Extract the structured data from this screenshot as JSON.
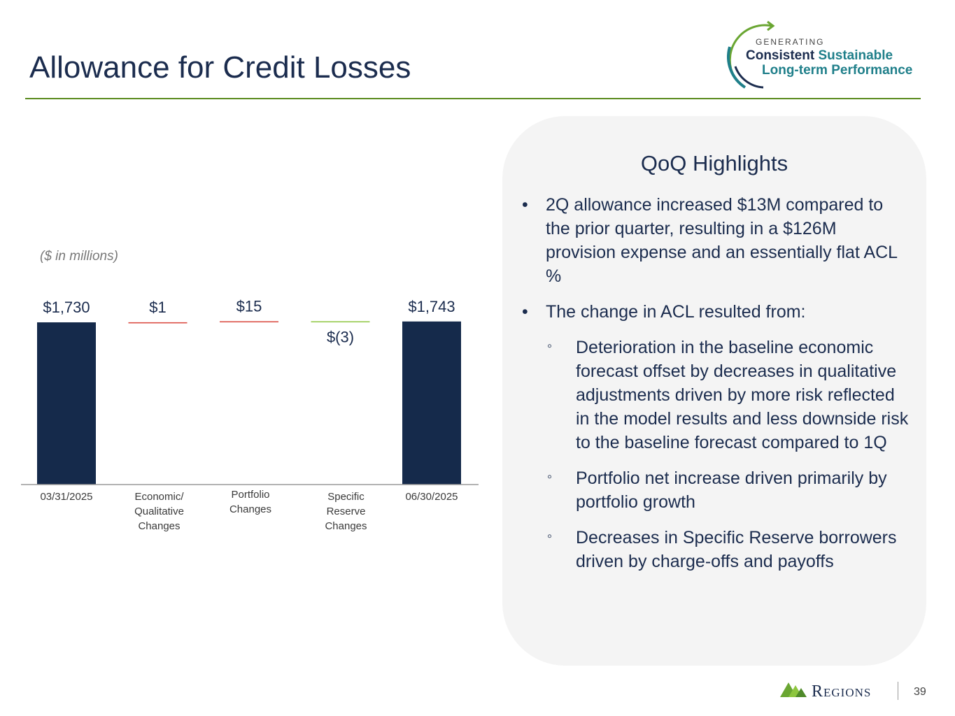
{
  "header": {
    "title": "Allowance for Credit Losses"
  },
  "logo": {
    "generating": "GENERATING",
    "line1_a": "Consistent",
    "line1_b": "Sustainable",
    "line2": "Long-term Performance"
  },
  "chart_data": {
    "type": "bar",
    "subtype": "waterfall",
    "units_note": "($ in millions)",
    "categories": [
      "03/31/2025",
      "Economic/\nQualitative\nChanges",
      "Portfolio\nChanges",
      "Specific\nReserve\nChanges",
      "06/30/2025"
    ],
    "category_lines": [
      [
        "03/31/2025"
      ],
      [
        "Economic/",
        "Qualitative",
        "Changes"
      ],
      [
        "Portfolio",
        "Changes"
      ],
      [
        "Specific",
        "Reserve",
        "Changes"
      ],
      [
        "06/30/2025"
      ]
    ],
    "values": [
      1730,
      1,
      15,
      -3,
      1743
    ],
    "kinds": [
      "total",
      "delta",
      "delta",
      "delta",
      "total"
    ],
    "value_labels": [
      "$1,730",
      "$1",
      "$15",
      "$(3)",
      "$1,743"
    ],
    "colors": {
      "total": "#152a4b",
      "increase": "#d9443a",
      "decrease": "#8dc63f",
      "axis": "#9a9a9a"
    },
    "legend": false,
    "grid": false
  },
  "panel": {
    "title": "QoQ Highlights",
    "bullets": [
      {
        "level": 1,
        "marker": "•",
        "text": "2Q allowance increased $13M compared to the prior quarter, resulting in a $126M provision expense and an essentially flat ACL %"
      },
      {
        "level": 1,
        "marker": "•",
        "text": "The change in ACL resulted from:"
      },
      {
        "level": 2,
        "marker": "◦",
        "text": "Deterioration in the baseline economic forecast offset by decreases in qualitative adjustments driven by more risk reflected in the model results and less downside risk to the baseline forecast compared to 1Q"
      },
      {
        "level": 2,
        "marker": "◦",
        "text": "Portfolio net increase driven primarily by portfolio growth"
      },
      {
        "level": 2,
        "marker": "◦",
        "text": "Decreases in Specific Reserve borrowers driven by charge-offs and payoffs"
      }
    ]
  },
  "footer": {
    "brand": "Regions",
    "page_number": "39"
  },
  "colors": {
    "title": "#1b2c4e",
    "rule": "#5a8a1e",
    "panel_bg": "#f4f4f4",
    "brand_green": "#6aa632",
    "brand_teal": "#1f7f8a"
  }
}
